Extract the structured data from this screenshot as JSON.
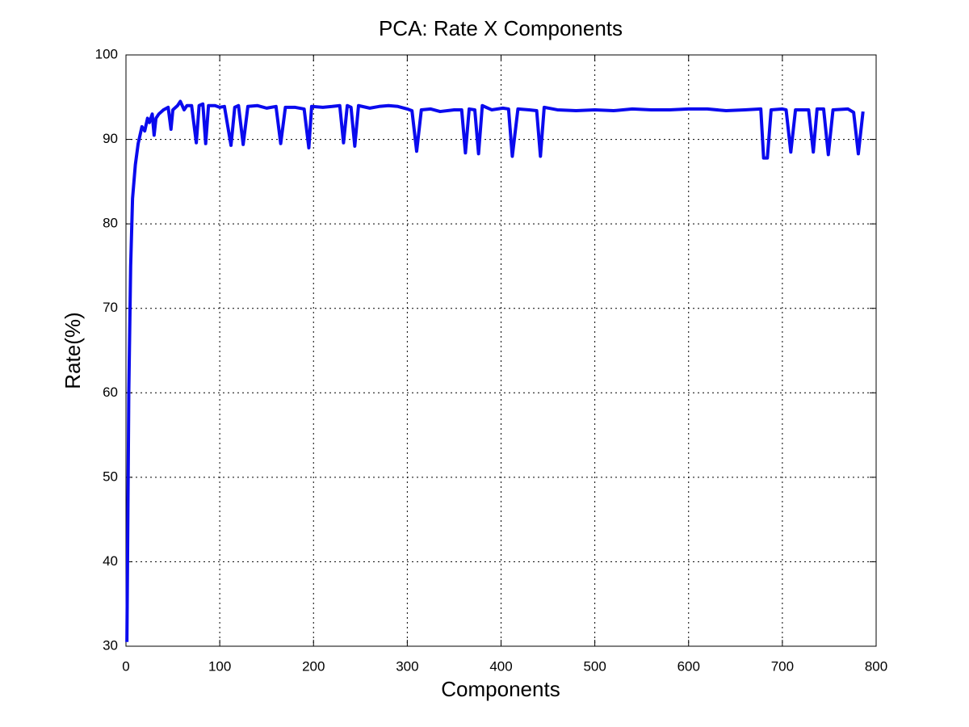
{
  "chart_data": {
    "type": "line",
    "title": "PCA: Rate X Components",
    "xlabel": "Components",
    "ylabel": "Rate(%)",
    "x": [
      1,
      2,
      3,
      5,
      7,
      10,
      13,
      15,
      17,
      20,
      23,
      25,
      28,
      30,
      32,
      35,
      40,
      45,
      48,
      50,
      55,
      58,
      62,
      65,
      70,
      75,
      78,
      82,
      85,
      88,
      95,
      100,
      105,
      112,
      116,
      120,
      125,
      130,
      140,
      150,
      160,
      165,
      170,
      180,
      190,
      195,
      198,
      210,
      220,
      228,
      232,
      236,
      240,
      244,
      248,
      260,
      270,
      280,
      290,
      300,
      305,
      310,
      315,
      325,
      335,
      350,
      358,
      362,
      366,
      372,
      376,
      380,
      390,
      402,
      408,
      412,
      418,
      430,
      438,
      442,
      446,
      460,
      480,
      500,
      520,
      540,
      560,
      580,
      600,
      620,
      640,
      660,
      677,
      680,
      684,
      688,
      700,
      704,
      709,
      714,
      728,
      733,
      737,
      744,
      749,
      754,
      770,
      776,
      781,
      786
    ],
    "series": [
      {
        "name": "Rate",
        "color": "#0a0aee",
        "values": [
          30.5,
          45,
          60,
          75,
          83,
          87,
          89.5,
          90.5,
          91.5,
          91,
          92.5,
          92,
          93,
          90.5,
          92.5,
          93,
          93.5,
          93.8,
          91.2,
          93.5,
          94,
          94.5,
          93.5,
          94,
          94,
          89.6,
          94,
          94.2,
          89.5,
          94,
          94,
          93.8,
          93.9,
          89.3,
          93.8,
          94,
          89.4,
          93.9,
          94,
          93.7,
          93.9,
          89.5,
          93.8,
          93.8,
          93.6,
          89,
          93.9,
          93.8,
          93.9,
          94,
          89.6,
          94,
          93.8,
          89.2,
          94,
          93.7,
          93.9,
          94,
          93.9,
          93.6,
          93.4,
          88.6,
          93.5,
          93.6,
          93.3,
          93.5,
          93.5,
          88.4,
          93.6,
          93.5,
          88.3,
          94,
          93.5,
          93.7,
          93.6,
          88,
          93.6,
          93.5,
          93.4,
          88,
          93.8,
          93.5,
          93.4,
          93.5,
          93.4,
          93.6,
          93.5,
          93.5,
          93.6,
          93.6,
          93.4,
          93.5,
          93.6,
          87.8,
          87.8,
          93.5,
          93.6,
          93.5,
          88.5,
          93.5,
          93.5,
          88.5,
          93.6,
          93.6,
          88.2,
          93.5,
          93.6,
          93.2,
          88.3,
          93.3
        ]
      }
    ],
    "xlim": [
      0,
      800
    ],
    "xticks": [
      0,
      100,
      200,
      300,
      400,
      500,
      600,
      700,
      800
    ],
    "ylim": [
      30,
      100
    ],
    "yticks": [
      30,
      40,
      50,
      60,
      70,
      80,
      90,
      100
    ],
    "grid": true
  }
}
